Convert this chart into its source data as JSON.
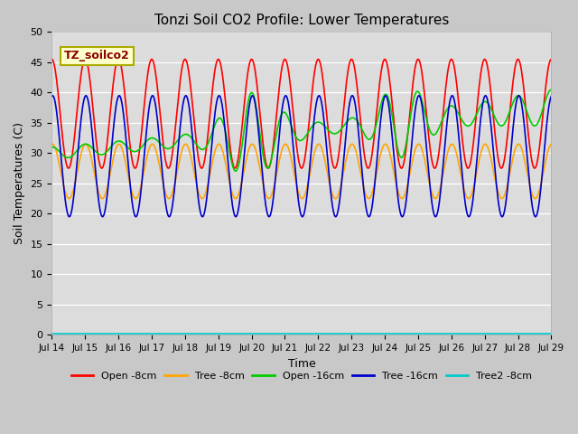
{
  "title": "Tonzi Soil CO2 Profile: Lower Temperatures",
  "xlabel": "Time",
  "ylabel": "Soil Temperatures (C)",
  "ylim": [
    0,
    50
  ],
  "yticks": [
    0,
    5,
    10,
    15,
    20,
    25,
    30,
    35,
    40,
    45,
    50
  ],
  "x_labels": [
    "Jul 14",
    "Jul 15",
    "Jul 16",
    "Jul 17",
    "Jul 18",
    "Jul 19",
    "Jul 20",
    "Jul 21",
    "Jul 22",
    "Jul 23",
    "Jul 24",
    "Jul 25",
    "Jul 26",
    "Jul 27",
    "Jul 28",
    "Jul 29"
  ],
  "annotation_label": "TZ_soilco2",
  "fig_bg_color": "#c8c8c8",
  "plot_bg_color": "#dcdcdc",
  "series": {
    "open_8cm": {
      "label": "Open -8cm",
      "color": "#ff0000",
      "linewidth": 1.2
    },
    "tree_8cm": {
      "label": "Tree -8cm",
      "color": "#ffa500",
      "linewidth": 1.2
    },
    "open_16cm": {
      "label": "Open -16cm",
      "color": "#00cc00",
      "linewidth": 1.2
    },
    "tree_16cm": {
      "label": "Tree -16cm",
      "color": "#0000cc",
      "linewidth": 1.2
    },
    "tree2_8cm": {
      "label": "Tree2 -8cm",
      "color": "#00cccc",
      "linewidth": 1.2
    }
  }
}
